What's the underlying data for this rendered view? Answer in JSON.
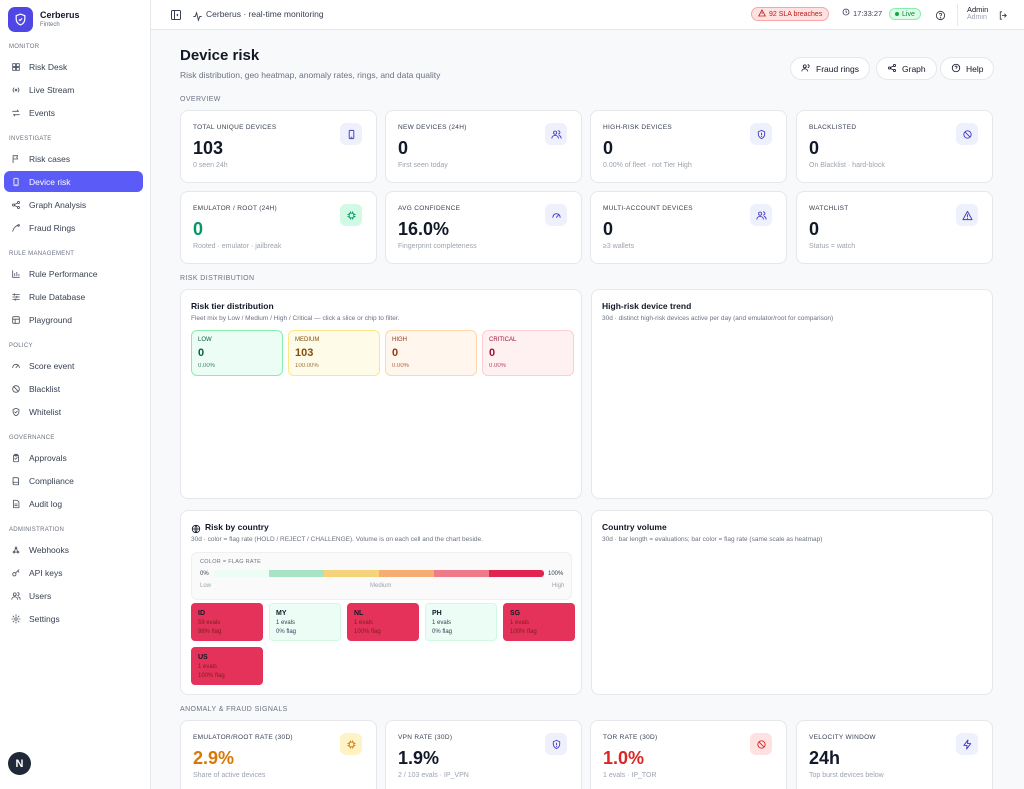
{
  "brand": {
    "name": "Cerberus",
    "sub": "Fintech"
  },
  "sidebar": {
    "sections": [
      {
        "head": "MONITOR",
        "items": [
          {
            "label": "Risk Desk",
            "icon": "grid-icon"
          },
          {
            "label": "Live Stream",
            "icon": "radio-icon"
          },
          {
            "label": "Events",
            "icon": "arrows-icon"
          }
        ]
      },
      {
        "head": "INVESTIGATE",
        "items": [
          {
            "label": "Risk cases",
            "icon": "flag-icon"
          },
          {
            "label": "Device risk",
            "icon": "phone-icon",
            "active": true
          },
          {
            "label": "Graph Analysis",
            "icon": "graph-icon"
          },
          {
            "label": "Fraud Rings",
            "icon": "ring-icon"
          }
        ]
      },
      {
        "head": "RULE MANAGEMENT",
        "items": [
          {
            "label": "Rule Performance",
            "icon": "bar-chart-icon"
          },
          {
            "label": "Rule Database",
            "icon": "list-icon"
          },
          {
            "label": "Playground",
            "icon": "layout-icon"
          }
        ]
      },
      {
        "head": "POLICY",
        "items": [
          {
            "label": "Score event",
            "icon": "gauge-icon"
          },
          {
            "label": "Blacklist",
            "icon": "ban-icon"
          },
          {
            "label": "Whitelist",
            "icon": "shield-check-icon"
          }
        ]
      },
      {
        "head": "GOVERNANCE",
        "items": [
          {
            "label": "Approvals",
            "icon": "clipboard-icon"
          },
          {
            "label": "Compliance",
            "icon": "book-icon"
          },
          {
            "label": "Audit log",
            "icon": "file-icon"
          }
        ]
      },
      {
        "head": "ADMINISTRATION",
        "items": [
          {
            "label": "Webhooks",
            "icon": "webhook-icon"
          },
          {
            "label": "API keys",
            "icon": "key-icon"
          },
          {
            "label": "Users",
            "icon": "users-icon"
          },
          {
            "label": "Settings",
            "icon": "gear-icon"
          }
        ]
      }
    ],
    "badge": "N"
  },
  "topbar": {
    "title": "Cerberus · real-time monitoring",
    "sla": "92 SLA breaches",
    "time": "17:33:27",
    "live": "Live",
    "user": "Admin",
    "role": "Admin"
  },
  "page": {
    "title": "Device risk",
    "subtitle": "Risk distribution, geo heatmap, anomaly rates, rings, and data quality",
    "btn_rings": "Fraud rings",
    "btn_graph": "Graph",
    "btn_help": "Help"
  },
  "overview": {
    "label": "OVERVIEW",
    "cards": [
      {
        "label": "TOTAL UNIQUE DEVICES",
        "value": "103",
        "sub": "0 seen 24h",
        "icon": "phone-icon"
      },
      {
        "label": "NEW DEVICES (24H)",
        "value": "0",
        "sub": "First seen today",
        "icon": "users-icon"
      },
      {
        "label": "HIGH-RISK DEVICES",
        "value": "0",
        "sub": "0.00% of fleet · not Tier High",
        "icon": "shield-icon"
      },
      {
        "label": "BLACKLISTED",
        "value": "0",
        "sub": "On Blacklist · hard-block",
        "icon": "ban-icon"
      },
      {
        "label": "EMULATOR / ROOT (24H)",
        "value": "0",
        "sub": "Rooted · emulator · jailbreak",
        "icon": "chip-icon"
      },
      {
        "label": "AVG CONFIDENCE",
        "value": "16.0%",
        "sub": "Fingerprint completeness",
        "icon": "gauge-icon"
      },
      {
        "label": "MULTI-ACCOUNT DEVICES",
        "value": "0",
        "sub": "≥3 wallets",
        "icon": "users-icon"
      },
      {
        "label": "WATCHLIST",
        "value": "0",
        "sub": "Status = watch",
        "icon": "warning-icon"
      }
    ]
  },
  "distribution": {
    "label": "RISK DISTRIBUTION",
    "tier_title": "Risk tier distribution",
    "tier_sub": "Fleet mix by Low / Medium / High / Critical — click a slice or chip to filter.",
    "tiers": [
      {
        "name": "LOW",
        "value": "0",
        "pct": "0.00%"
      },
      {
        "name": "MEDIUM",
        "value": "103",
        "pct": "100.00%"
      },
      {
        "name": "HIGH",
        "value": "0",
        "pct": "0.00%"
      },
      {
        "name": "CRITICAL",
        "value": "0",
        "pct": "0.00%"
      }
    ],
    "trend_title": "High-risk device trend",
    "trend_sub": "30d · distinct high-risk devices active per day (and emulator/root for comparison)"
  },
  "country": {
    "title": "Risk by country",
    "sub": "30d · color = flag rate (HOLD / REJECT / CHALLENGE). Volume is on each cell and the chart beside.",
    "legend_title": "COLOR = FLAG RATE",
    "legend_min": "0%",
    "legend_max": "100%",
    "legend_low": "Low",
    "legend_mid": "Medium",
    "legend_high": "High",
    "cells": [
      {
        "code": "ID",
        "evals": "59 evals",
        "flag": "98% flag",
        "hot": true
      },
      {
        "code": "MY",
        "evals": "1 evals",
        "flag": "0% flag",
        "hot": false
      },
      {
        "code": "NL",
        "evals": "1 evals",
        "flag": "100% flag",
        "hot": true
      },
      {
        "code": "PH",
        "evals": "1 evals",
        "flag": "0% flag",
        "hot": false
      },
      {
        "code": "SG",
        "evals": "1 evals",
        "flag": "100% flag",
        "hot": true
      },
      {
        "code": "US",
        "evals": "1 evals",
        "flag": "100% flag",
        "hot": true
      }
    ],
    "volume_title": "Country volume",
    "volume_sub": "30d · bar length = evaluations; bar color = flag rate (same scale as heatmap)"
  },
  "anomaly": {
    "label": "ANOMALY & FRAUD SIGNALS",
    "cards": [
      {
        "label": "EMULATOR/ROOT RATE (30D)",
        "value": "2.9%",
        "sub": "Share of active devices",
        "icon": "chip-icon",
        "color": "#d97706",
        "bg": "#fef3c7"
      },
      {
        "label": "VPN RATE (30D)",
        "value": "1.9%",
        "sub": "2 / 103 evals · IP_VPN",
        "icon": "shield-icon",
        "color": "#111827",
        "bg": "#eef0fb"
      },
      {
        "label": "TOR RATE (30D)",
        "value": "1.0%",
        "sub": "1 evals · IP_TOR",
        "icon": "ban-icon",
        "color": "#dc2626",
        "bg": "#fee2e2"
      },
      {
        "label": "VELOCITY WINDOW",
        "value": "24h",
        "sub": "Top burst devices below",
        "icon": "bolt-icon",
        "color": "#111827",
        "bg": "#eef0fb"
      }
    ]
  },
  "colors": {
    "accent": "#5b5bf7",
    "hot": "#e5325a",
    "cool": "#ecfdf5"
  }
}
